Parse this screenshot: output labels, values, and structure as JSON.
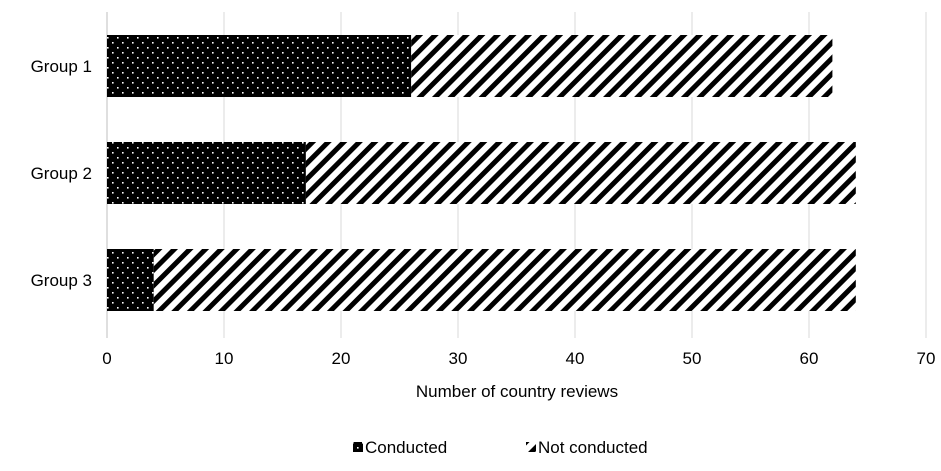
{
  "chart_data": {
    "type": "bar",
    "orientation": "horizontal",
    "stacked": true,
    "categories": [
      "Group 1",
      "Group 2",
      "Group 3"
    ],
    "series": [
      {
        "name": "Conducted",
        "values": [
          26,
          17,
          4
        ],
        "pattern": "dots"
      },
      {
        "name": "Not conducted",
        "values": [
          36,
          47,
          60
        ],
        "pattern": "diagonal-stripes"
      }
    ],
    "xlabel": "Number of country reviews",
    "xlim": [
      0,
      70
    ],
    "xticks": [
      "0",
      "10",
      "20",
      "30",
      "40",
      "50",
      "60",
      "70"
    ],
    "grid": "vertical",
    "legend_position": "bottom",
    "colors": {
      "ink": "#000000",
      "grid": "#d9d9d9",
      "background": "#ffffff"
    }
  }
}
